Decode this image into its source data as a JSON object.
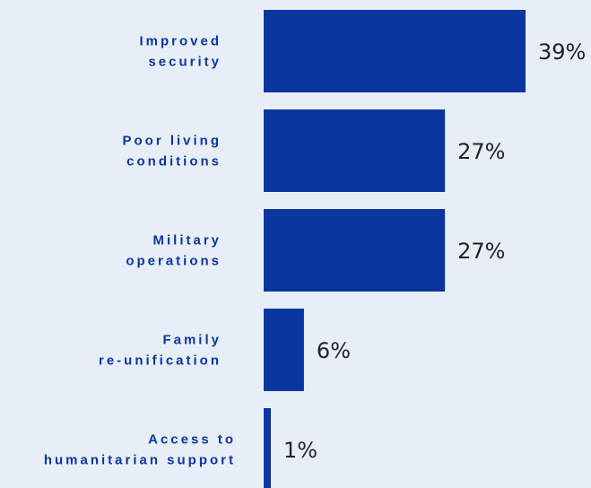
{
  "chart_data": {
    "type": "bar",
    "orientation": "horizontal",
    "title": "",
    "xlabel": "",
    "ylabel": "",
    "categories": [
      [
        "Improved",
        "security"
      ],
      [
        "Poor living",
        "conditions"
      ],
      [
        "Military",
        "operations"
      ],
      [
        "Family",
        "re-unification"
      ],
      [
        "Access to",
        "humanitarian support"
      ]
    ],
    "values": [
      39,
      27,
      27,
      6,
      1
    ],
    "value_labels": [
      "39%",
      "27%",
      "27%",
      "6%",
      "1%"
    ],
    "xlim": [
      0,
      39
    ],
    "grid": false,
    "legend": "none",
    "colors": {
      "bar": "#0a36a0",
      "label": "#0a36a0",
      "value_text": "#222222",
      "background": "#e8eef8"
    }
  }
}
